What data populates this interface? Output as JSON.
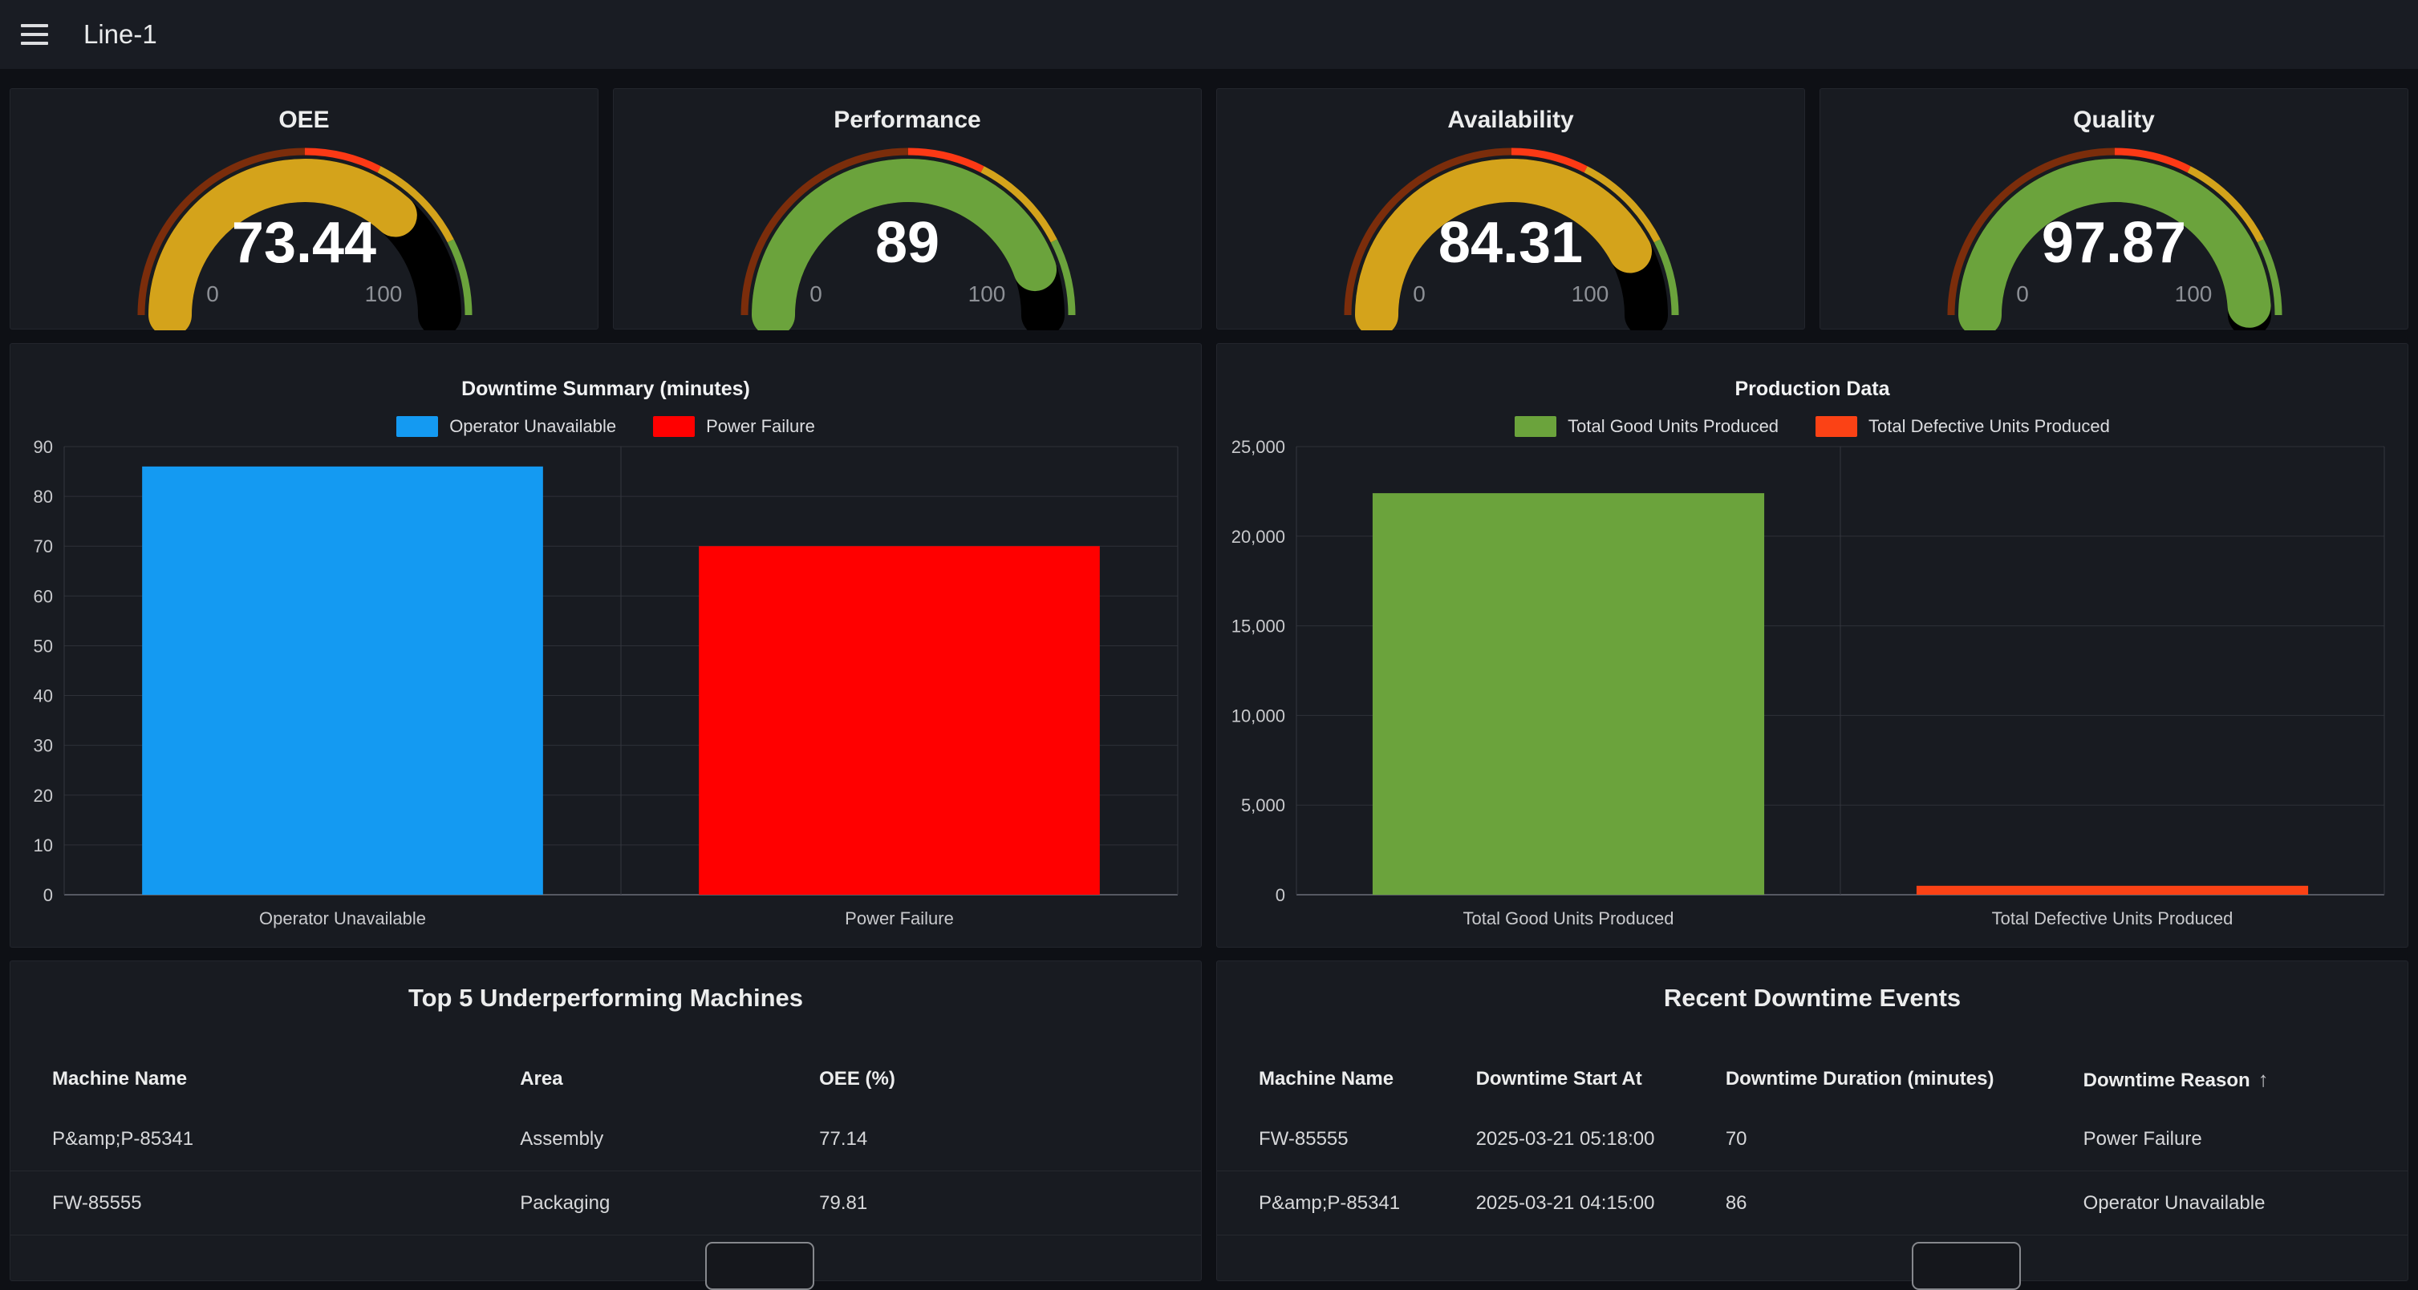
{
  "header": {
    "title": "Line-1",
    "menu_icon": "hamburger-icon"
  },
  "gauge_style": {
    "track_color": "#000000",
    "thresholds": [
      {
        "from": 0,
        "to": 50,
        "color": "#7b2d0b"
      },
      {
        "from": 50,
        "to": 65,
        "color": "#fd3915"
      },
      {
        "from": 65,
        "to": 85,
        "color": "#d4a31b"
      },
      {
        "from": 85,
        "to": 100,
        "color": "#6ba33c"
      }
    ]
  },
  "gauges": [
    {
      "title": "OEE",
      "value": "73.44",
      "numeric": 73.44,
      "min_label": "0",
      "max_label": "100"
    },
    {
      "title": "Performance",
      "value": "89",
      "numeric": 89,
      "min_label": "0",
      "max_label": "100"
    },
    {
      "title": "Availability",
      "value": "84.31",
      "numeric": 84.31,
      "min_label": "0",
      "max_label": "100"
    },
    {
      "title": "Quality",
      "value": "97.87",
      "numeric": 97.87,
      "min_label": "0",
      "max_label": "100"
    }
  ],
  "chart_data": [
    {
      "type": "bar",
      "title": "Downtime Summary (minutes)",
      "categories": [
        "Operator Unavailable",
        "Power Failure"
      ],
      "values": [
        86,
        70
      ],
      "colors": [
        "#149af2",
        "#ff0000"
      ],
      "legend": [
        "Operator Unavailable",
        "Power Failure"
      ],
      "legend_position": "top",
      "xlabel": "",
      "ylabel": "",
      "ylim": [
        0,
        90
      ],
      "ytick_step": 10,
      "grid": true
    },
    {
      "type": "bar",
      "title": "Production Data",
      "categories": [
        "Total Good Units Produced",
        "Total Defective Units Produced"
      ],
      "values": [
        22400,
        500
      ],
      "colors": [
        "#6ba33c",
        "#fb4215"
      ],
      "legend": [
        "Total Good Units Produced",
        "Total Defective Units Produced"
      ],
      "legend_position": "top",
      "xlabel": "",
      "ylabel": "",
      "ylim": [
        0,
        25000
      ],
      "ytick_step": 5000,
      "grid": true
    }
  ],
  "tables": [
    {
      "title": "Top 5 Underperforming Machines",
      "columns": [
        "Machine Name",
        "Area",
        "OEE (%)"
      ],
      "rows": [
        [
          "P&amp;P-85341",
          "Assembly",
          "77.14"
        ],
        [
          "FW-85555",
          "Packaging",
          "79.81"
        ]
      ],
      "sort": null
    },
    {
      "title": "Recent Downtime Events",
      "columns": [
        "Machine Name",
        "Downtime Start At",
        "Downtime Duration (minutes)",
        "Downtime Reason"
      ],
      "rows": [
        [
          "FW-85555",
          "2025-03-21 05:18:00",
          "70",
          "Power Failure"
        ],
        [
          "P&amp;P-85341",
          "2025-03-21 04:15:00",
          "86",
          "Operator Unavailable"
        ]
      ],
      "sort": {
        "column_index": 3,
        "icon": "up-arrow",
        "glyph": "↑"
      }
    }
  ]
}
